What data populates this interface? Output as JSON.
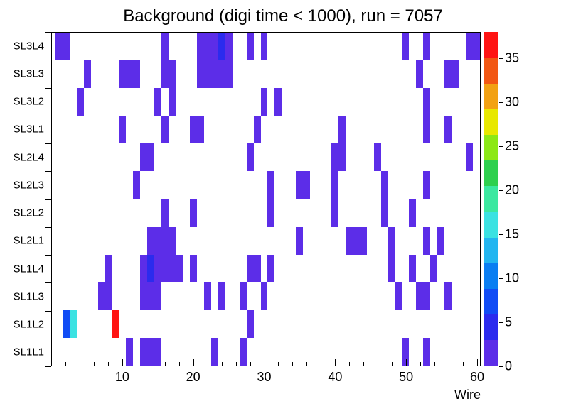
{
  "chart_data": {
    "type": "heatmap",
    "title": "Background (digi time < 1000), run = 7057",
    "xlabel": "Wire",
    "x_range": [
      0,
      60.5
    ],
    "x_major_ticks": [
      10,
      20,
      30,
      40,
      50,
      60
    ],
    "x_minor_tick_step": 2,
    "y_categories": [
      "SL3L4",
      "SL3L3",
      "SL3L2",
      "SL3L1",
      "SL2L4",
      "SL2L3",
      "SL2L2",
      "SL2L1",
      "SL1L4",
      "SL1L3",
      "SL1L2",
      "SL1L1"
    ],
    "z_range": [
      0,
      38
    ],
    "colorbar_ticks": [
      0,
      5,
      10,
      15,
      20,
      25,
      30,
      35
    ],
    "palette": [
      "#5c2de8",
      "#2b2bee",
      "#114cf5",
      "#0a7ef2",
      "#22b5f0",
      "#3be2e2",
      "#3be8a0",
      "#2ed04e",
      "#8ce816",
      "#e8e800",
      "#f2a113",
      "#f25713",
      "#ff1413"
    ],
    "grid": false,
    "legend_position": "right-colorbar",
    "cells": [
      [
        "SL3L4",
        1,
        1
      ],
      [
        "SL3L4",
        2,
        1
      ],
      [
        "SL3L4",
        16,
        1
      ],
      [
        "SL3L4",
        21,
        1
      ],
      [
        "SL3L4",
        22,
        1
      ],
      [
        "SL3L4",
        23,
        1
      ],
      [
        "SL3L4",
        24,
        3
      ],
      [
        "SL3L4",
        25,
        1
      ],
      [
        "SL3L4",
        28,
        1
      ],
      [
        "SL3L4",
        30,
        1
      ],
      [
        "SL3L4",
        50,
        1
      ],
      [
        "SL3L4",
        53,
        1
      ],
      [
        "SL3L4",
        59,
        1
      ],
      [
        "SL3L4",
        60,
        1
      ],
      [
        "SL3L3",
        5,
        1
      ],
      [
        "SL3L3",
        10,
        1
      ],
      [
        "SL3L3",
        11,
        1
      ],
      [
        "SL3L3",
        12,
        1
      ],
      [
        "SL3L3",
        16,
        1
      ],
      [
        "SL3L3",
        17,
        1
      ],
      [
        "SL3L3",
        21,
        1
      ],
      [
        "SL3L3",
        22,
        1
      ],
      [
        "SL3L3",
        23,
        1
      ],
      [
        "SL3L3",
        24,
        1
      ],
      [
        "SL3L3",
        25,
        1
      ],
      [
        "SL3L3",
        52,
        1
      ],
      [
        "SL3L3",
        56,
        1
      ],
      [
        "SL3L3",
        57,
        1
      ],
      [
        "SL3L2",
        4,
        1
      ],
      [
        "SL3L2",
        15,
        1
      ],
      [
        "SL3L2",
        17,
        1
      ],
      [
        "SL3L2",
        30,
        1
      ],
      [
        "SL3L2",
        32,
        1
      ],
      [
        "SL3L2",
        53,
        1
      ],
      [
        "SL3L1",
        10,
        1
      ],
      [
        "SL3L1",
        16,
        1
      ],
      [
        "SL3L1",
        20,
        1
      ],
      [
        "SL3L1",
        21,
        1
      ],
      [
        "SL3L1",
        29,
        1
      ],
      [
        "SL3L1",
        41,
        1
      ],
      [
        "SL3L1",
        53,
        1
      ],
      [
        "SL3L1",
        56,
        1
      ],
      [
        "SL2L4",
        13,
        1
      ],
      [
        "SL2L4",
        14,
        1
      ],
      [
        "SL2L4",
        28,
        1
      ],
      [
        "SL2L4",
        40,
        1
      ],
      [
        "SL2L4",
        41,
        1
      ],
      [
        "SL2L4",
        46,
        1
      ],
      [
        "SL2L4",
        59,
        1
      ],
      [
        "SL2L3",
        12,
        1
      ],
      [
        "SL2L3",
        31,
        1
      ],
      [
        "SL2L3",
        35,
        1
      ],
      [
        "SL2L3",
        36,
        1
      ],
      [
        "SL2L3",
        40,
        1
      ],
      [
        "SL2L3",
        47,
        1
      ],
      [
        "SL2L3",
        53,
        1
      ],
      [
        "SL2L2",
        16,
        1
      ],
      [
        "SL2L2",
        20,
        1
      ],
      [
        "SL2L2",
        31,
        1
      ],
      [
        "SL2L2",
        40,
        1
      ],
      [
        "SL2L2",
        47,
        1
      ],
      [
        "SL2L2",
        51,
        1
      ],
      [
        "SL2L1",
        14,
        1
      ],
      [
        "SL2L1",
        15,
        1
      ],
      [
        "SL2L1",
        16,
        1
      ],
      [
        "SL2L1",
        17,
        1
      ],
      [
        "SL2L1",
        35,
        1
      ],
      [
        "SL2L1",
        42,
        1
      ],
      [
        "SL2L1",
        43,
        1
      ],
      [
        "SL2L1",
        44,
        1
      ],
      [
        "SL2L1",
        48,
        1
      ],
      [
        "SL2L1",
        53,
        1
      ],
      [
        "SL2L1",
        55,
        1
      ],
      [
        "SL1L4",
        8,
        1
      ],
      [
        "SL1L4",
        13,
        1
      ],
      [
        "SL1L4",
        14,
        3
      ],
      [
        "SL1L4",
        15,
        1
      ],
      [
        "SL1L4",
        16,
        1
      ],
      [
        "SL1L4",
        17,
        1
      ],
      [
        "SL1L4",
        18,
        1
      ],
      [
        "SL1L4",
        20,
        1
      ],
      [
        "SL1L4",
        28,
        1
      ],
      [
        "SL1L4",
        29,
        1
      ],
      [
        "SL1L4",
        31,
        1
      ],
      [
        "SL1L4",
        48,
        1
      ],
      [
        "SL1L4",
        51,
        1
      ],
      [
        "SL1L4",
        54,
        1
      ],
      [
        "SL1L3",
        7,
        1
      ],
      [
        "SL1L3",
        8,
        1
      ],
      [
        "SL1L3",
        13,
        1
      ],
      [
        "SL1L3",
        14,
        1
      ],
      [
        "SL1L3",
        15,
        1
      ],
      [
        "SL1L3",
        22,
        1
      ],
      [
        "SL1L3",
        24,
        1
      ],
      [
        "SL1L3",
        27,
        1
      ],
      [
        "SL1L3",
        30,
        1
      ],
      [
        "SL1L3",
        49,
        1
      ],
      [
        "SL1L3",
        52,
        1
      ],
      [
        "SL1L3",
        53,
        1
      ],
      [
        "SL1L3",
        56,
        1
      ],
      [
        "SL1L2",
        2,
        6
      ],
      [
        "SL1L2",
        3,
        15
      ],
      [
        "SL1L2",
        9,
        37
      ],
      [
        "SL1L2",
        28,
        1
      ],
      [
        "SL1L1",
        11,
        1
      ],
      [
        "SL1L1",
        13,
        1
      ],
      [
        "SL1L1",
        14,
        1
      ],
      [
        "SL1L1",
        15,
        1
      ],
      [
        "SL1L1",
        23,
        1
      ],
      [
        "SL1L1",
        27,
        1
      ],
      [
        "SL1L1",
        50,
        1
      ],
      [
        "SL1L1",
        53,
        1
      ]
    ]
  }
}
